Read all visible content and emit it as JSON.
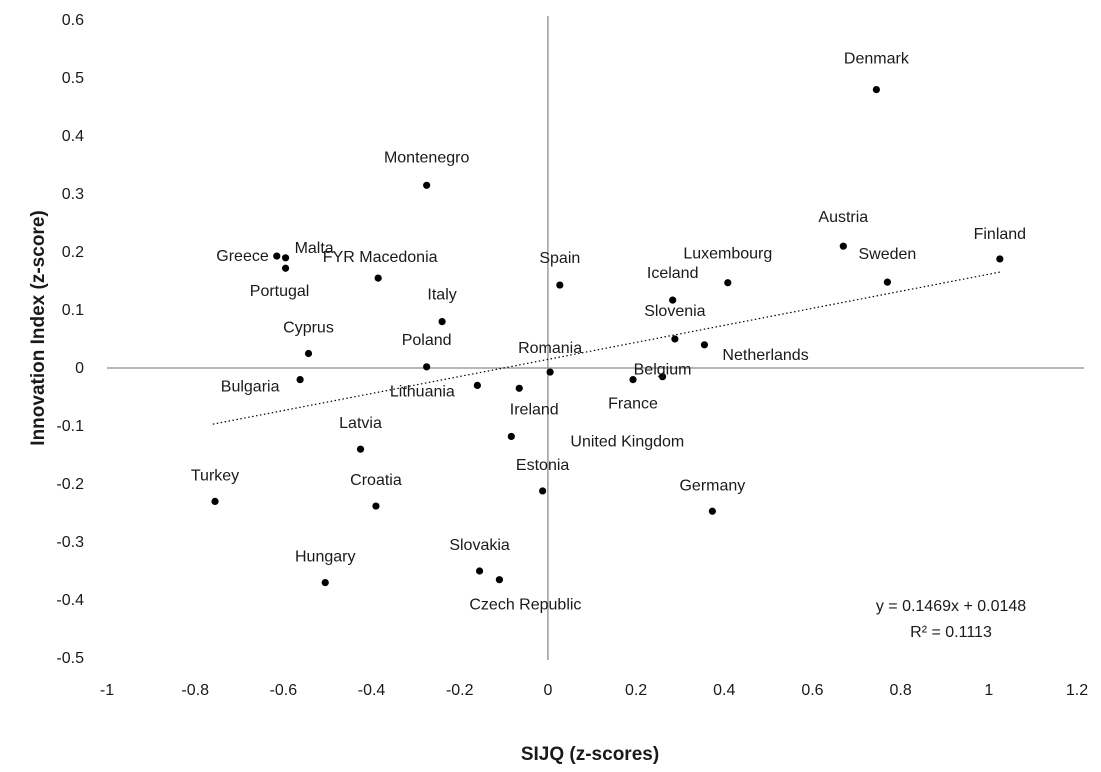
{
  "chart_data": {
    "type": "scatter",
    "title": "",
    "xlabel": "SIJQ (z-scores)",
    "ylabel": "Innovation Index (z-score)",
    "xlim": [
      -1,
      1.2
    ],
    "ylim": [
      -0.5,
      0.6
    ],
    "x_ticks": [
      "-1",
      "-0.8",
      "-0.6",
      "-0.4",
      "-0.2",
      "0",
      "0.2",
      "0.4",
      "0.6",
      "0.8",
      "1",
      "1.2"
    ],
    "y_ticks": [
      "-0.5",
      "-0.4",
      "-0.3",
      "-0.2",
      "-0.1",
      "0",
      "0.1",
      "0.2",
      "0.3",
      "0.4",
      "0.5",
      "0.6"
    ],
    "grid": false,
    "legend": "none",
    "points": [
      {
        "label": "Denmark",
        "x": 0.745,
        "y": 0.48
      },
      {
        "label": "Montenegro",
        "x": -0.275,
        "y": 0.315
      },
      {
        "label": "Austria",
        "x": 0.67,
        "y": 0.21
      },
      {
        "label": "Finland",
        "x": 1.025,
        "y": 0.188
      },
      {
        "label": "Sweden",
        "x": 0.77,
        "y": 0.148
      },
      {
        "label": "Greece",
        "x": -0.615,
        "y": 0.193
      },
      {
        "label": "Malta",
        "x": -0.595,
        "y": 0.19
      },
      {
        "label": "Portugal",
        "x": -0.595,
        "y": 0.172
      },
      {
        "label": "FYR Macedonia",
        "x": -0.385,
        "y": 0.155
      },
      {
        "label": "Spain",
        "x": 0.027,
        "y": 0.143
      },
      {
        "label": "Luxembourg",
        "x": 0.408,
        "y": 0.147
      },
      {
        "label": "Iceland",
        "x": 0.283,
        "y": 0.117
      },
      {
        "label": "Italy",
        "x": -0.24,
        "y": 0.08
      },
      {
        "label": "Slovenia",
        "x": 0.288,
        "y": 0.05
      },
      {
        "label": "Netherlands",
        "x": 0.355,
        "y": 0.04
      },
      {
        "label": "Cyprus",
        "x": -0.543,
        "y": 0.025
      },
      {
        "label": "Poland",
        "x": -0.275,
        "y": 0.002
      },
      {
        "label": "Romania",
        "x": 0.005,
        "y": -0.007
      },
      {
        "label": "Belgium",
        "x": 0.26,
        "y": -0.015
      },
      {
        "label": "France",
        "x": 0.193,
        "y": -0.02
      },
      {
        "label": "Bulgaria",
        "x": -0.562,
        "y": -0.02
      },
      {
        "label": "Lithuania",
        "x": -0.16,
        "y": -0.03
      },
      {
        "label": "Ireland",
        "x": -0.065,
        "y": -0.035
      },
      {
        "label": "United Kingdom",
        "x": -0.083,
        "y": -0.118
      },
      {
        "label": "Latvia",
        "x": -0.425,
        "y": -0.14
      },
      {
        "label": "Estonia",
        "x": -0.012,
        "y": -0.212
      },
      {
        "label": "Turkey",
        "x": -0.755,
        "y": -0.23
      },
      {
        "label": "Croatia",
        "x": -0.39,
        "y": -0.238
      },
      {
        "label": "Germany",
        "x": 0.373,
        "y": -0.247
      },
      {
        "label": "Slovakia",
        "x": -0.155,
        "y": -0.35
      },
      {
        "label": "Czech Republic",
        "x": -0.11,
        "y": -0.365
      },
      {
        "label": "Hungary",
        "x": -0.505,
        "y": -0.37
      }
    ],
    "trendline": {
      "style": "dotted",
      "slope": 0.1469,
      "intercept": 0.0148,
      "x_range": [
        -0.76,
        1.025
      ],
      "equation": "y = 0.1469x + 0.0148",
      "r_squared": "R² = 0.1113"
    },
    "colors": {
      "points": "#000000",
      "axes": "#8c8c8c",
      "text": "#1a1a1a"
    }
  }
}
